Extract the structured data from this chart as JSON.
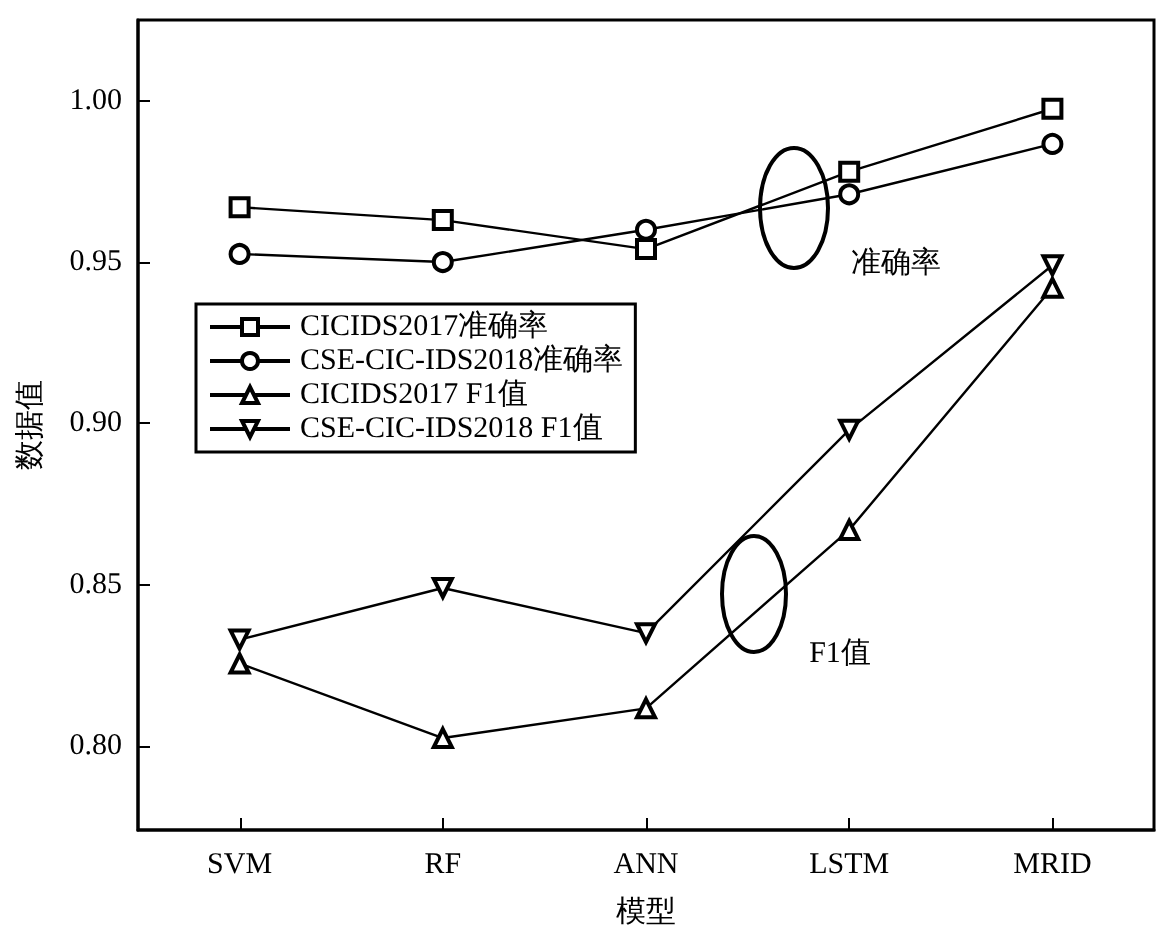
{
  "chart_data": {
    "type": "line",
    "xlabel": "模型",
    "ylabel": "数据值",
    "categories": [
      "SVM",
      "RF",
      "ANN",
      "LSTM",
      "MRID"
    ],
    "series": [
      {
        "name": "CICIDS2017准确率",
        "color": "#000000",
        "marker": "square",
        "values": [
          0.967,
          0.963,
          0.954,
          0.978,
          0.9975
        ]
      },
      {
        "name": "CSE-CIC-IDS2018准确率",
        "color": "#000000",
        "marker": "circle",
        "values": [
          0.9525,
          0.95,
          0.96,
          0.971,
          0.9866
        ]
      },
      {
        "name": "CICIDS2017 F1值",
        "color": "#000000",
        "marker": "triangle",
        "values": [
          0.8256,
          0.8025,
          0.8117,
          0.867,
          0.942
        ]
      },
      {
        "name": "CSE-CIC-IDS2018 F1值",
        "color": "#000000",
        "marker": "triangle-down",
        "values": [
          0.833,
          0.849,
          0.835,
          0.898,
          0.949
        ]
      }
    ],
    "ylim": [
      0.774,
      1.025
    ],
    "yticks": [
      {
        "value": 0.8,
        "label": "0.80"
      },
      {
        "value": 0.85,
        "label": "0.85"
      },
      {
        "value": 0.9,
        "label": "0.90"
      },
      {
        "value": 0.95,
        "label": "0.95"
      },
      {
        "value": 1.0,
        "label": "1.00"
      }
    ],
    "annotations": [
      "准确率",
      "F1值"
    ],
    "legend": "left",
    "grid": false
  }
}
